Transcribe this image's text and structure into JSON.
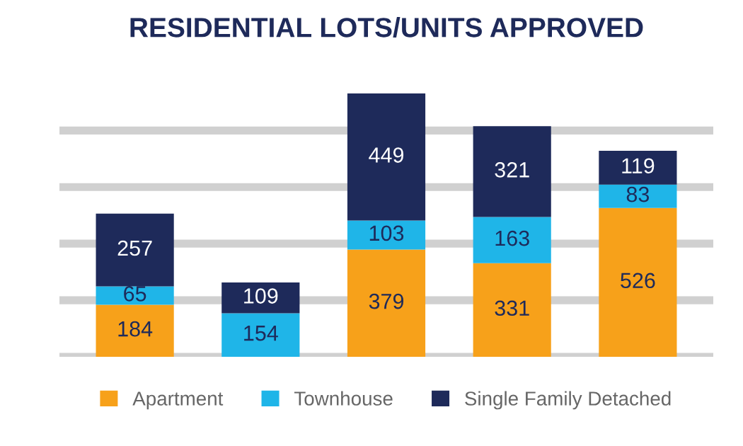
{
  "chart_data": {
    "type": "bar",
    "title": "RESIDENTIAL LOTS/UNITS APPROVED",
    "categories": [
      null,
      null,
      null,
      null,
      null
    ],
    "stacked": true,
    "data_labels": true,
    "grid": "y",
    "legend": "bottom",
    "tick_labels": false,
    "series": [
      {
        "name": "Apartment",
        "color": "#f7a11a",
        "values": [
          184,
          null,
          379,
          331,
          526
        ]
      },
      {
        "name": "Townhouse",
        "color": "#1fb5e8",
        "values": [
          65,
          154,
          103,
          163,
          83
        ]
      },
      {
        "name": "Single Family Detached",
        "color": "#1e2a5a",
        "values": [
          257,
          109,
          449,
          321,
          119
        ]
      }
    ]
  }
}
